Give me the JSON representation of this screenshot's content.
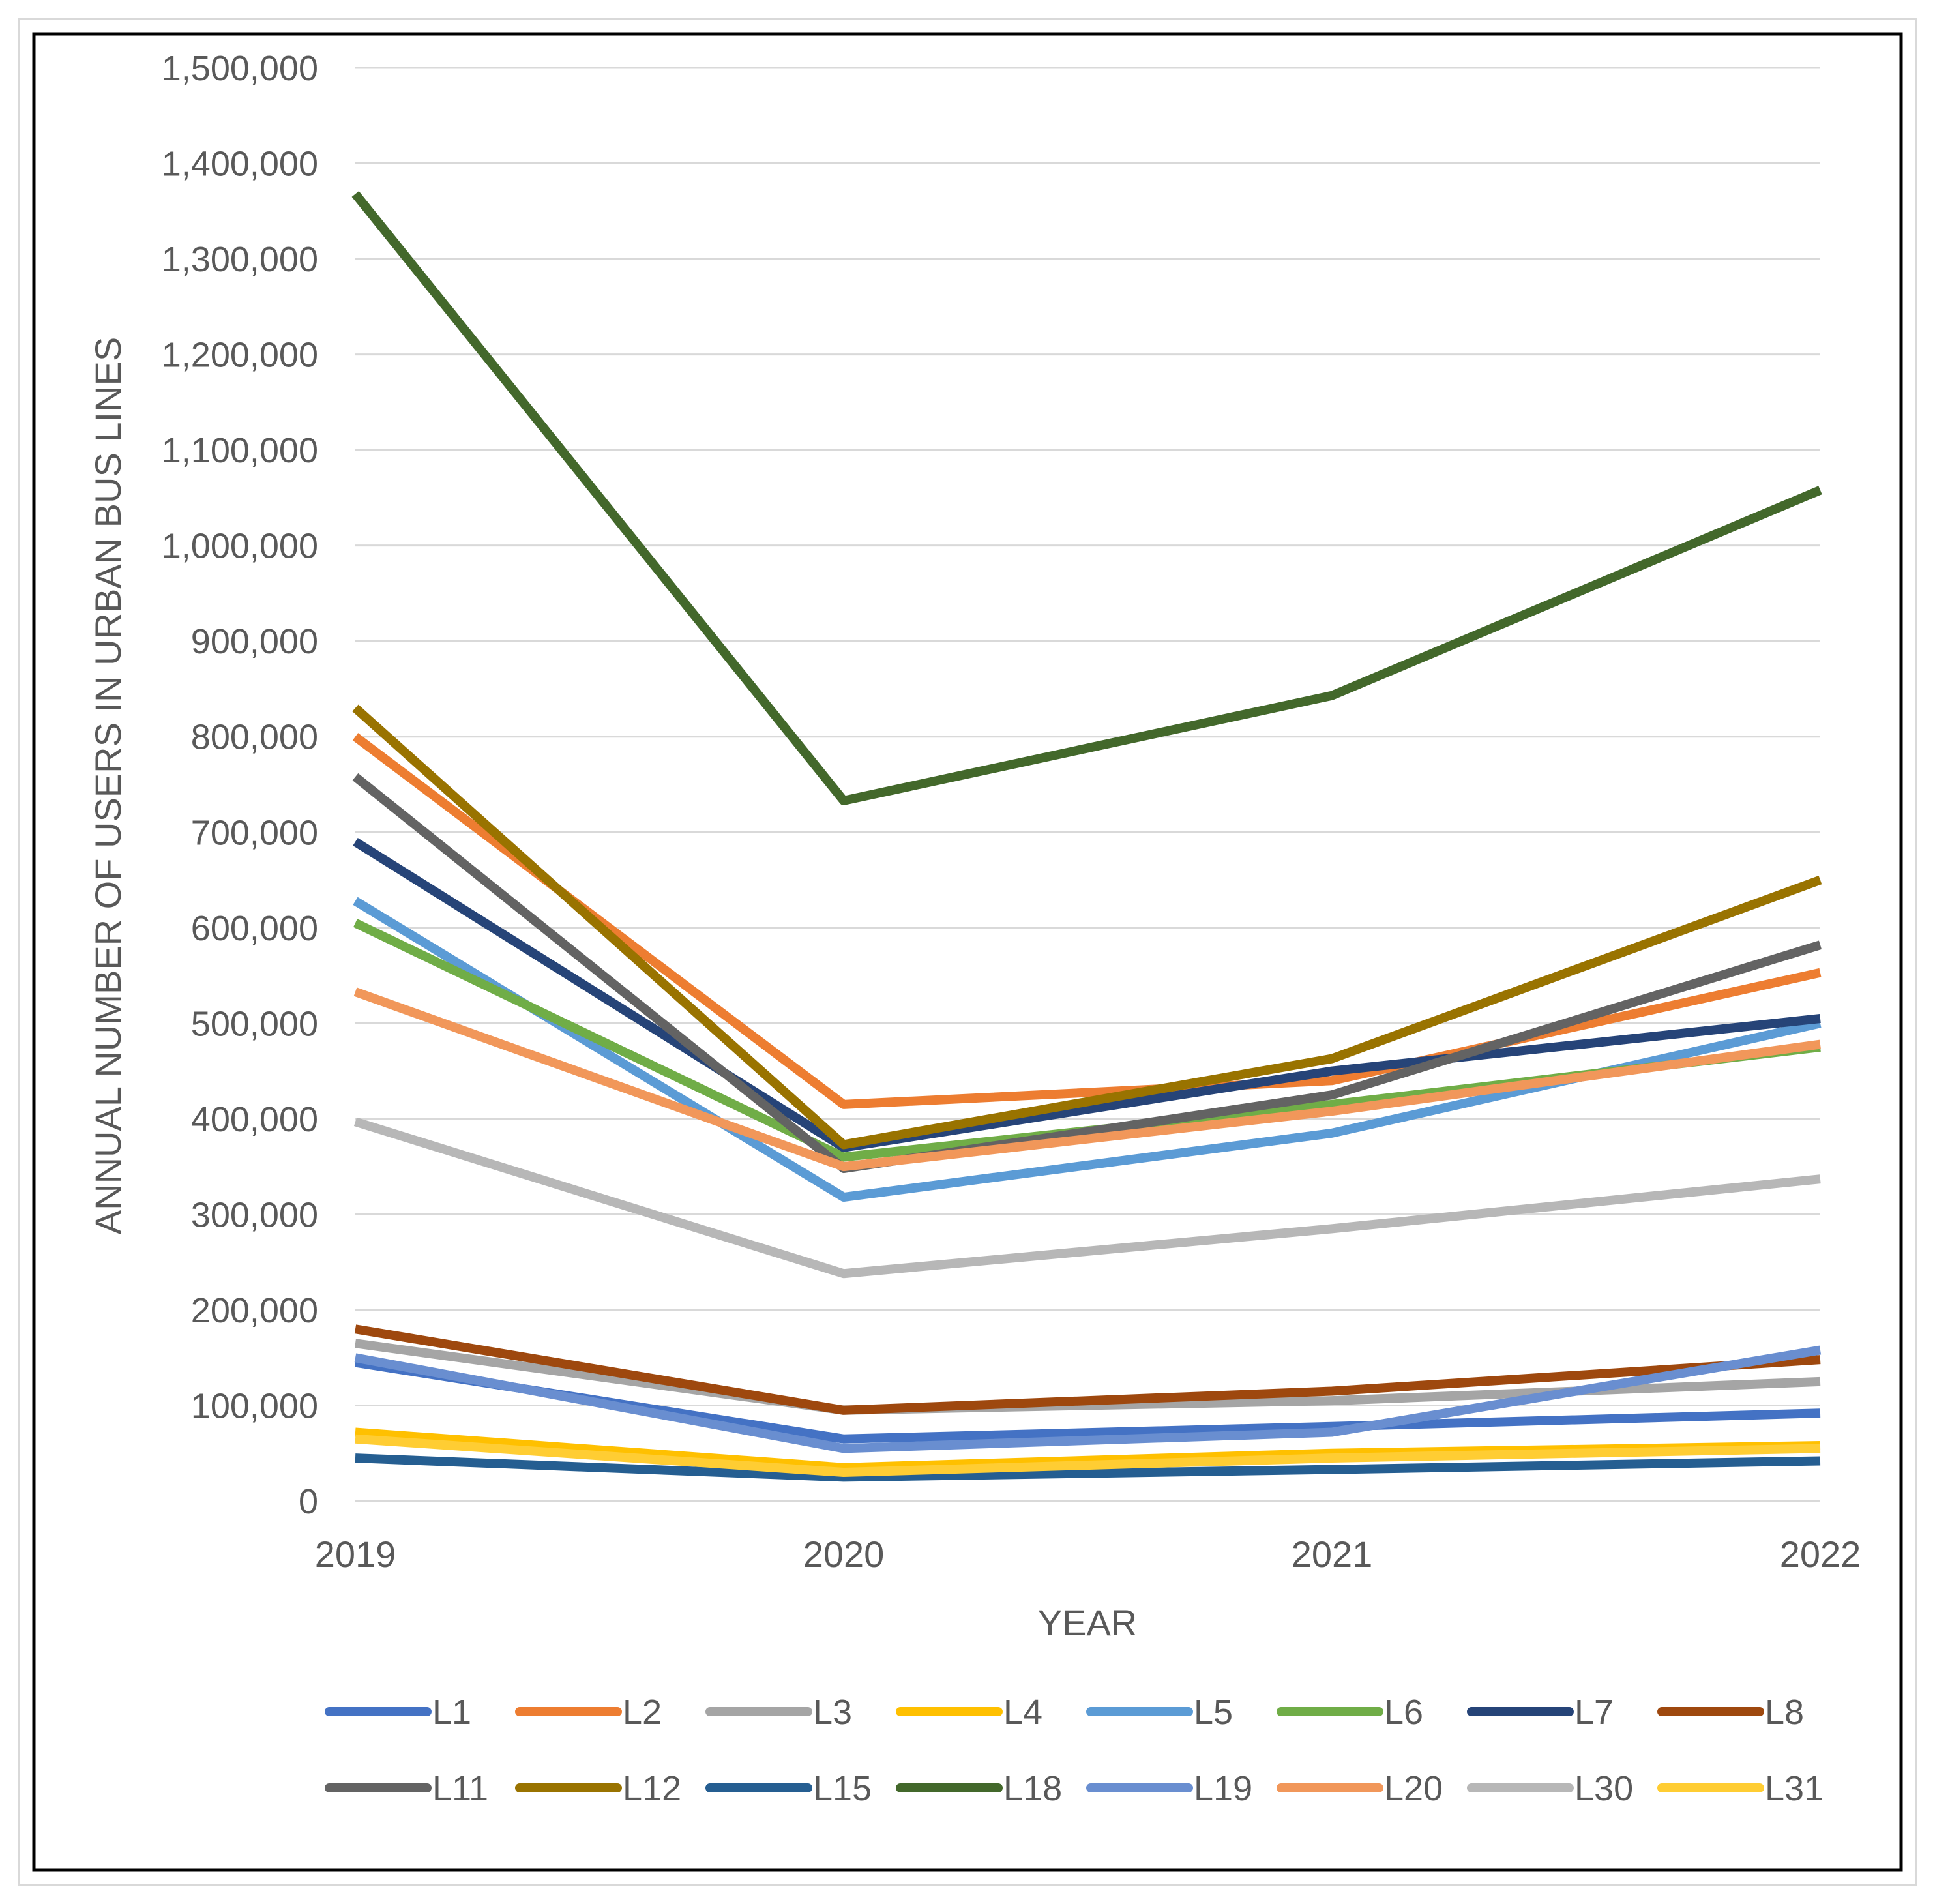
{
  "chart_data": {
    "type": "line",
    "title": "",
    "xlabel": "YEAR",
    "ylabel": "ANNUAL NUMBER OF USERS IN URBAN BUS LINES",
    "x": [
      "2019",
      "2020",
      "2021",
      "2022"
    ],
    "ylim": [
      0,
      1500000
    ],
    "yticks": [
      0,
      100000,
      200000,
      300000,
      400000,
      500000,
      600000,
      700000,
      800000,
      900000,
      1000000,
      1100000,
      1200000,
      1300000,
      1400000,
      1500000
    ],
    "ytick_labels": [
      "0",
      "100,000",
      "200,000",
      "300,000",
      "400,000",
      "500,000",
      "600,000",
      "700,000",
      "800,000",
      "900,000",
      "1,000,000",
      "1,100,000",
      "1,200,000",
      "1,300,000",
      "1,400,000",
      "1,500,000"
    ],
    "grid": true,
    "legend_position": "bottom",
    "series": [
      {
        "name": "L1",
        "color": "#4472C4",
        "values": [
          145000,
          65000,
          78000,
          92000
        ]
      },
      {
        "name": "L2",
        "color": "#ED7D31",
        "values": [
          800000,
          415000,
          440000,
          553000
        ]
      },
      {
        "name": "L3",
        "color": "#A5A5A5",
        "values": [
          165000,
          95000,
          105000,
          125000
        ]
      },
      {
        "name": "L4",
        "color": "#FFC000",
        "values": [
          72000,
          35000,
          50000,
          58000
        ]
      },
      {
        "name": "L5",
        "color": "#5B9BD5",
        "values": [
          628000,
          318000,
          385000,
          500000
        ]
      },
      {
        "name": "L6",
        "color": "#70AD47",
        "values": [
          605000,
          360000,
          415000,
          475000
        ]
      },
      {
        "name": "L7",
        "color": "#264478",
        "values": [
          690000,
          370000,
          450000,
          505000
        ]
      },
      {
        "name": "L8",
        "color": "#9E480E",
        "values": [
          180000,
          95000,
          115000,
          148000
        ]
      },
      {
        "name": "L11",
        "color": "#636363",
        "values": [
          758000,
          348000,
          425000,
          582000
        ]
      },
      {
        "name": "L12",
        "color": "#997300",
        "values": [
          830000,
          373000,
          463000,
          650000
        ]
      },
      {
        "name": "L15",
        "color": "#255E91",
        "values": [
          45000,
          25000,
          33000,
          42000
        ]
      },
      {
        "name": "L18",
        "color": "#43682B",
        "values": [
          1368000,
          733000,
          843000,
          1058000
        ]
      },
      {
        "name": "L19",
        "color": "#698ED0",
        "values": [
          150000,
          55000,
          72000,
          158000
        ]
      },
      {
        "name": "L20",
        "color": "#F1975A",
        "values": [
          533000,
          350000,
          408000,
          478000
        ]
      },
      {
        "name": "L30",
        "color": "#B7B7B7",
        "values": [
          397000,
          238000,
          285000,
          337000
        ]
      },
      {
        "name": "L31",
        "color": "#FFCD33",
        "values": [
          65000,
          30000,
          45000,
          55000
        ]
      }
    ]
  }
}
